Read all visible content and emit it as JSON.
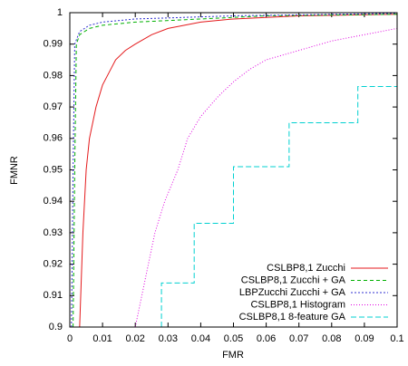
{
  "chart_data": {
    "type": "line",
    "xlabel": "FMR",
    "ylabel": "FMNR",
    "xlim": [
      0,
      0.1
    ],
    "ylim": [
      0.9,
      1
    ],
    "xticks": [
      0,
      0.01,
      0.02,
      0.03,
      0.04,
      0.05,
      0.06,
      0.07,
      0.08,
      0.09,
      0.1
    ],
    "yticks": [
      0.9,
      0.91,
      0.92,
      0.93,
      0.94,
      0.95,
      0.96,
      0.97,
      0.98,
      0.99,
      1
    ],
    "grid": false,
    "legend": "bottom-right",
    "series": [
      {
        "name": "CSLBP8,1 Zucchi",
        "color": "#e41a1c",
        "dash": "none",
        "x": [
          0.003,
          0.004,
          0.005,
          0.006,
          0.008,
          0.01,
          0.012,
          0.014,
          0.017,
          0.02,
          0.025,
          0.03,
          0.04,
          0.05,
          0.07,
          0.1
        ],
        "values": [
          0.9,
          0.93,
          0.95,
          0.96,
          0.97,
          0.977,
          0.981,
          0.985,
          0.988,
          0.99,
          0.993,
          0.995,
          0.997,
          0.998,
          0.999,
          0.9995
        ]
      },
      {
        "name": "CSLBP8,1 Zucchi + GA",
        "color": "#00b000",
        "dash": "4,3",
        "x": [
          0.001,
          0.0015,
          0.002,
          0.003,
          0.006,
          0.01,
          0.02,
          0.04,
          0.06,
          0.1
        ],
        "values": [
          0.9,
          0.95,
          0.99,
          0.993,
          0.995,
          0.996,
          0.997,
          0.998,
          0.999,
          0.9995
        ]
      },
      {
        "name": "LBPZucchi Zucchi + GA",
        "color": "#3030d0",
        "dash": "2,2",
        "x": [
          0.0005,
          0.001,
          0.0015,
          0.003,
          0.006,
          0.01,
          0.02,
          0.05,
          0.1
        ],
        "values": [
          0.9,
          0.95,
          0.99,
          0.994,
          0.996,
          0.997,
          0.998,
          0.999,
          0.9998
        ]
      },
      {
        "name": "CSLBP8,1 Histogram",
        "color": "#e000e0",
        "dash": "1,2",
        "x": [
          0.02,
          0.022,
          0.024,
          0.026,
          0.029,
          0.033,
          0.036,
          0.04,
          0.045,
          0.05,
          0.055,
          0.06,
          0.07,
          0.08,
          0.09,
          0.1
        ],
        "values": [
          0.9,
          0.91,
          0.92,
          0.93,
          0.94,
          0.95,
          0.96,
          0.967,
          0.973,
          0.978,
          0.982,
          0.985,
          0.988,
          0.991,
          0.993,
          0.995
        ]
      },
      {
        "name": "CSLBP8,1 8-feature GA",
        "color": "#00d0d0",
        "dash": "6,3",
        "x": [
          0.028,
          0.028,
          0.038,
          0.038,
          0.05,
          0.05,
          0.067,
          0.067,
          0.088,
          0.088,
          0.1
        ],
        "values": [
          0.9,
          0.914,
          0.914,
          0.933,
          0.933,
          0.951,
          0.951,
          0.965,
          0.965,
          0.9765,
          0.9765
        ]
      }
    ]
  }
}
